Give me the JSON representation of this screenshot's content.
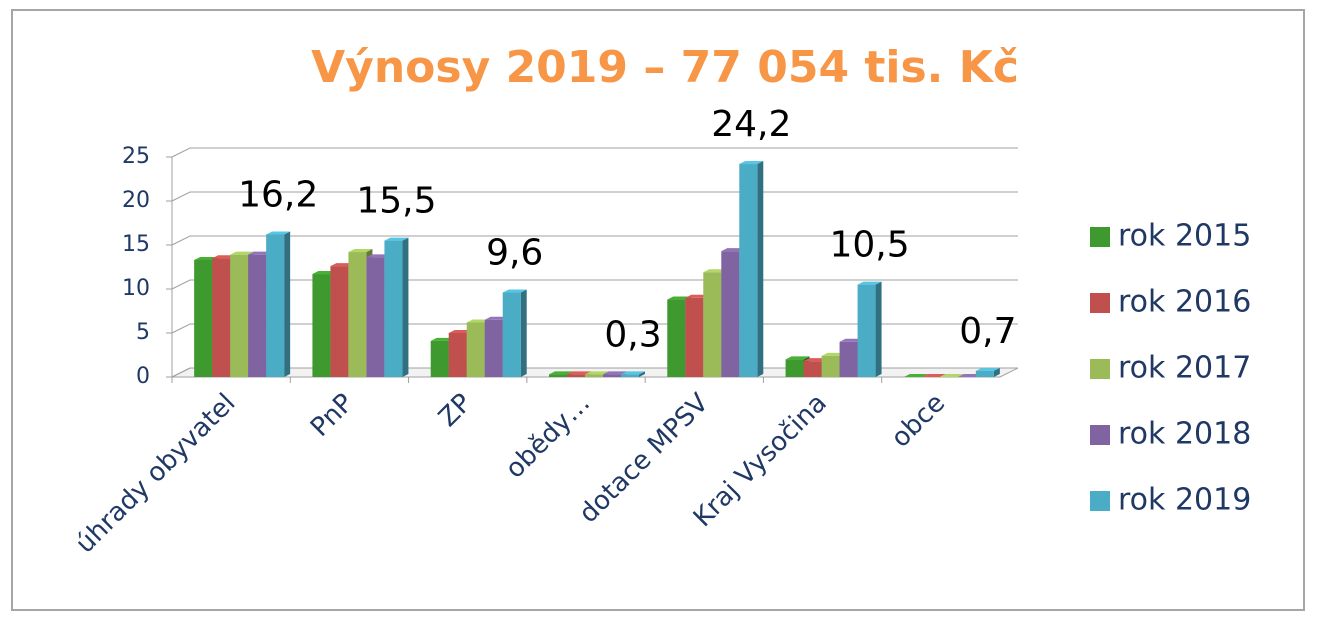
{
  "chart_data": {
    "type": "bar",
    "title": "Výnosy 2019 – 77 054 tis. Kč",
    "categories": [
      "úhrady obyvatel",
      "PnP",
      "ZP",
      "obědy…",
      "dotace MPSV",
      "Kraj Vysočina",
      "obce"
    ],
    "series": [
      {
        "name": "rok 2015",
        "color": "#3e9a2e",
        "values": [
          13.3,
          11.7,
          4.1,
          0.3,
          8.8,
          2.0,
          0.0
        ]
      },
      {
        "name": "rok 2016",
        "color": "#c0504d",
        "values": [
          13.5,
          12.6,
          5.0,
          0.3,
          9.0,
          1.8,
          0.0
        ]
      },
      {
        "name": "rok 2017",
        "color": "#9bbb59",
        "values": [
          13.9,
          14.2,
          6.2,
          0.3,
          11.9,
          2.4,
          0.0
        ]
      },
      {
        "name": "rok 2018",
        "color": "#8064a2",
        "values": [
          13.9,
          13.6,
          6.5,
          0.3,
          14.3,
          4.0,
          0.0
        ]
      },
      {
        "name": "rok 2019",
        "color": "#4bacc6",
        "values": [
          16.2,
          15.5,
          9.6,
          0.3,
          24.2,
          10.5,
          0.7
        ],
        "value_labels": [
          "16,2",
          "15,5",
          "9,6",
          "0,3",
          "24,2",
          "10,5",
          "0,7"
        ]
      }
    ],
    "ylim": [
      0,
      25
    ],
    "yticks": [
      0,
      5,
      10,
      15,
      20,
      25
    ],
    "grid": true,
    "legend": "right"
  }
}
